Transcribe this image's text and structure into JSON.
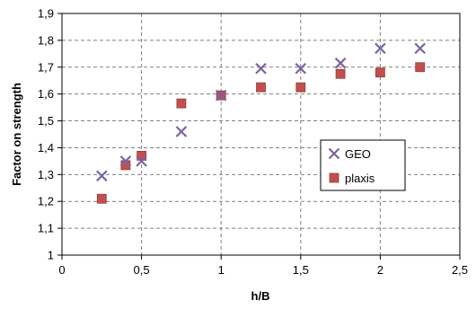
{
  "chart_data": {
    "type": "scatter",
    "title": "",
    "xlabel": "h/B",
    "ylabel": "Factor on strength",
    "xlim": [
      0,
      2.5
    ],
    "ylim": [
      1,
      1.9
    ],
    "xticks": [
      "0",
      "0,5",
      "1",
      "1,5",
      "2",
      "2,5"
    ],
    "xtick_values": [
      0,
      0.5,
      1,
      1.5,
      2,
      2.5
    ],
    "yticks": [
      "1",
      "1,1",
      "1,2",
      "1,3",
      "1,4",
      "1,5",
      "1,6",
      "1,7",
      "1,8",
      "1,9"
    ],
    "ytick_values": [
      1,
      1.1,
      1.2,
      1.3,
      1.4,
      1.5,
      1.6,
      1.7,
      1.8,
      1.9
    ],
    "grid": "dashed major gridlines on both axes",
    "legend_position": "right-middle",
    "series": [
      {
        "name": "GEO",
        "marker": "x-icon",
        "color": "#7b62a3",
        "x": [
          0.25,
          0.4,
          0.5,
          0.75,
          1.0,
          1.25,
          1.5,
          1.75,
          2.0,
          2.25
        ],
        "y": [
          1.295,
          1.35,
          1.35,
          1.46,
          1.595,
          1.695,
          1.695,
          1.715,
          1.77,
          1.77
        ]
      },
      {
        "name": "plaxis",
        "marker": "square-icon",
        "color": "#c0504d",
        "x": [
          0.25,
          0.4,
          0.5,
          0.75,
          1.0,
          1.25,
          1.5,
          1.75,
          2.0,
          2.25
        ],
        "y": [
          1.21,
          1.335,
          1.37,
          1.565,
          1.595,
          1.625,
          1.625,
          1.675,
          1.68,
          1.7
        ]
      }
    ]
  }
}
